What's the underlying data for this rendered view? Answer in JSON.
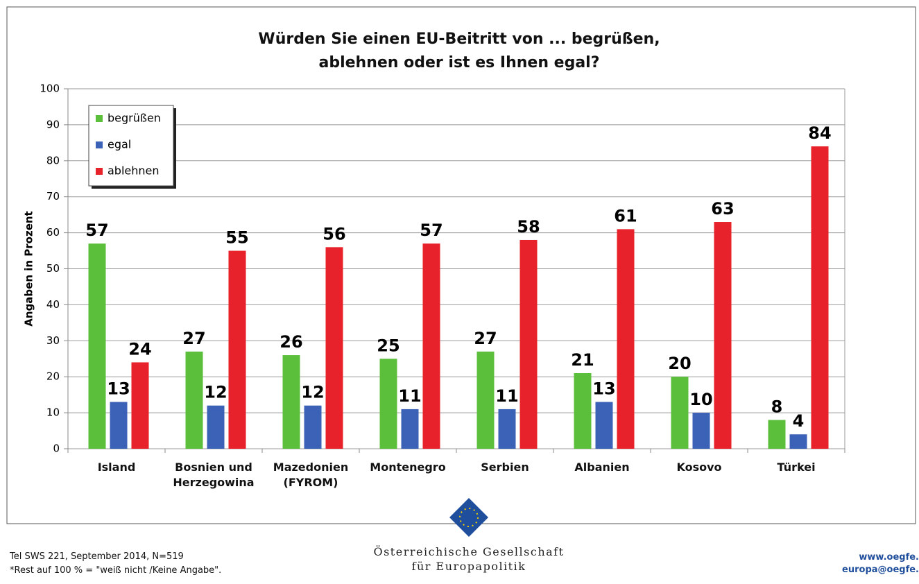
{
  "chart_data": {
    "type": "bar",
    "title": "Würden Sie einen EU-Beitritt von ... begrüßen,\nablehnen oder ist es Ihnen egal?",
    "y_label": "Angaben in Prozent",
    "categories": [
      "Island",
      "Bosnien und\nHerzegowina",
      "Mazedonien\n(FYROM)",
      "Montenegro",
      "Serbien",
      "Albanien",
      "Kosovo",
      "Türkei"
    ],
    "series": [
      {
        "name": "begrüßen",
        "color": "#5cbf3c",
        "values": [
          57,
          27,
          26,
          25,
          27,
          21,
          20,
          8
        ]
      },
      {
        "name": "egal",
        "color": "#3b62b6",
        "values": [
          13,
          12,
          12,
          11,
          11,
          13,
          10,
          4
        ]
      },
      {
        "name": "ablehnen",
        "color": "#e8222a",
        "values": [
          24,
          55,
          56,
          57,
          58,
          61,
          63,
          84
        ]
      }
    ],
    "ylim": [
      0,
      100
    ],
    "yticks": [
      0,
      10,
      20,
      30,
      40,
      50,
      60,
      70,
      80,
      90,
      100
    ],
    "grid": true,
    "legend": "top-left",
    "notes": [
      "Tel SWS 221, September 2014, N=519",
      "*Rest auf 100 % = \"weiß nicht /Keine Angabe\"."
    ],
    "organization": "Österreichische Gesellschaft\nfür Europapolitik",
    "contact": [
      "www.oegfe.",
      "europa@oegfe."
    ]
  }
}
